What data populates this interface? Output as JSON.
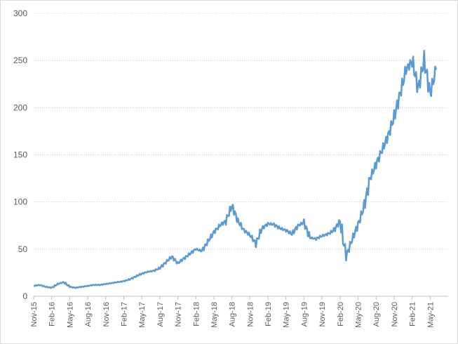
{
  "chart_data": {
    "type": "line",
    "title": "",
    "xlabel": "",
    "ylabel": "",
    "ylim": [
      0,
      300
    ],
    "yticks": [
      0,
      50,
      100,
      150,
      200,
      250,
      300
    ],
    "grid": "horizontal-dotted",
    "legend": "none",
    "line_color": "#5b9bd5",
    "x_tick_labels": [
      "Nov-15",
      "Feb-16",
      "May-16",
      "Aug-16",
      "Nov-16",
      "Feb-17",
      "May-17",
      "Aug-17",
      "Nov-17",
      "Feb-18",
      "May-18",
      "Aug-18",
      "Nov-18",
      "Feb-19",
      "May-19",
      "Aug-19",
      "Nov-19",
      "Feb-20",
      "May-20",
      "Aug-20",
      "Nov-20",
      "Feb-21",
      "May-21"
    ],
    "series": [
      {
        "x": [
          "Nov-15",
          "Dec-15",
          "Jan-16",
          "Feb-16",
          "Mar-16",
          "Apr-16",
          "May-16",
          "Jun-16",
          "Jul-16",
          "Aug-16",
          "Sep-16",
          "Oct-16",
          "Nov-16",
          "Dec-16",
          "Jan-17",
          "Feb-17",
          "Mar-17",
          "Apr-17",
          "May-17",
          "Jun-17",
          "Jul-17",
          "Aug-17",
          "Sep-17",
          "Oct-17",
          "Nov-17",
          "Dec-17",
          "Jan-18",
          "Feb-18",
          "Mar-18",
          "Apr-18",
          "May-18",
          "Jun-18",
          "Jul-18",
          "Aug-18",
          "Sep-18",
          "Oct-18",
          "Nov-18",
          "Dec-18",
          "Jan-19",
          "Feb-19",
          "Mar-19",
          "Apr-19",
          "May-19",
          "Jun-19",
          "Jul-19",
          "Aug-19",
          "Sep-19",
          "Oct-19",
          "Nov-19",
          "Dec-19",
          "Jan-20",
          "Feb-20",
          "Mar-20",
          "Apr-20",
          "May-20",
          "Jun-20",
          "Jul-20",
          "Aug-20",
          "Sep-20",
          "Oct-20",
          "Nov-20",
          "Dec-20",
          "Jan-21",
          "Feb-21",
          "Mar-21",
          "Apr-21",
          "May-21",
          "Jun-21"
        ],
        "values": [
          11,
          12,
          10,
          9,
          13,
          15,
          10,
          9,
          10,
          11,
          12,
          12,
          13,
          14,
          15,
          16,
          18,
          21,
          24,
          26,
          27,
          30,
          36,
          42,
          35,
          40,
          45,
          50,
          48,
          58,
          68,
          75,
          80,
          96,
          80,
          70,
          65,
          56,
          72,
          77,
          76,
          72,
          70,
          66,
          75,
          78,
          62,
          61,
          64,
          66,
          70,
          80,
          42,
          60,
          76,
          95,
          125,
          140,
          155,
          170,
          190,
          215,
          240,
          250,
          220,
          250,
          215,
          240
        ]
      }
    ]
  }
}
